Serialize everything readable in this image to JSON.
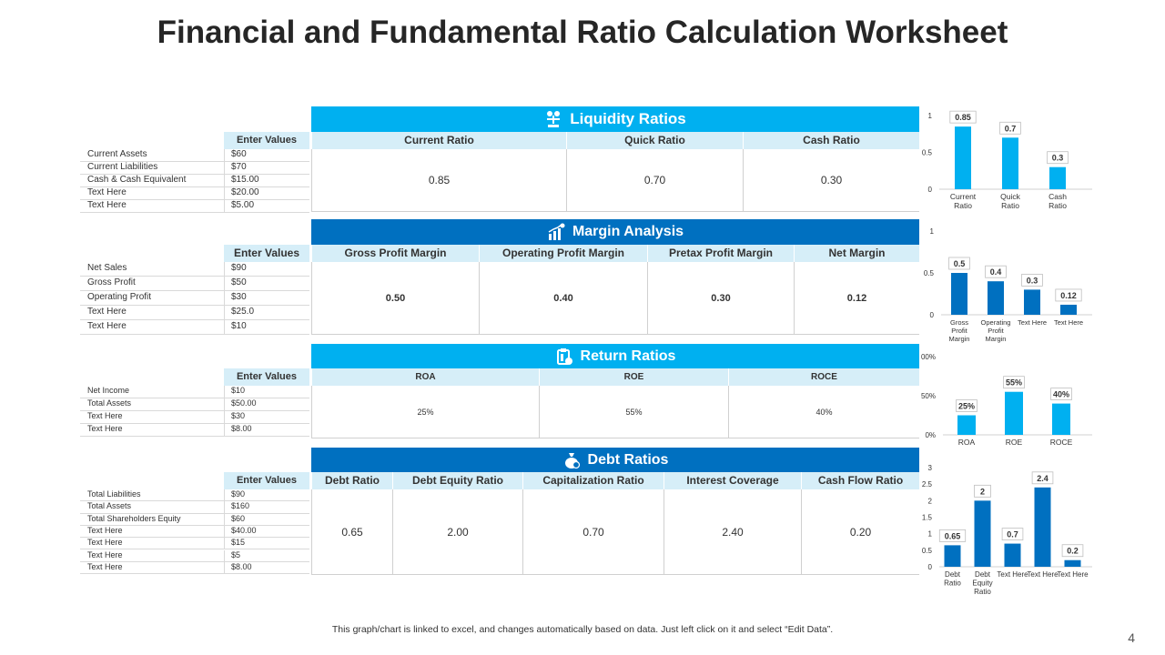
{
  "title": "Financial and Fundamental Ratio Calculation Worksheet",
  "footnote": "This graph/chart is linked to excel, and changes automatically based on data. Just left click on it and select “Edit Data”.",
  "page_number": "4",
  "colors": {
    "light_blue": "#00b0f0",
    "dark_blue": "#0070c0",
    "header_fill": "#d6eef8",
    "label_fill": "#f2f2f2"
  },
  "liquidity": {
    "banner": "Liquidity Ratios",
    "icon": "money-scale-icon",
    "enter_values": "Enter Values",
    "inputs": [
      {
        "label": "Current Assets",
        "value": "$60"
      },
      {
        "label": "Current Liabilities",
        "value": "$70"
      },
      {
        "label": "Cash & Cash Equivalent",
        "value": "$15.00"
      },
      {
        "label": "Text Here",
        "value": "$20.00"
      },
      {
        "label": "Text Here",
        "value": "$5.00"
      }
    ],
    "columns": [
      "Current Ratio",
      "Quick Ratio",
      "Cash Ratio"
    ],
    "results": [
      "0.85",
      "0.70",
      "0.30"
    ]
  },
  "margin": {
    "banner": "Margin Analysis",
    "icon": "bar-growth-icon",
    "enter_values": "Enter Values",
    "inputs": [
      {
        "label": "Net Sales",
        "value": "$90"
      },
      {
        "label": "Gross Profit",
        "value": "$50"
      },
      {
        "label": "Operating Profit",
        "value": "$30"
      },
      {
        "label": "Text Here",
        "value": "$25.0"
      },
      {
        "label": "Text Here",
        "value": "$10"
      }
    ],
    "columns": [
      "Gross Profit Margin",
      "Operating Profit Margin",
      "Pretax Profit Margin",
      "Net Margin"
    ],
    "results": [
      "0.50",
      "0.40",
      "0.30",
      "0.12"
    ]
  },
  "returns": {
    "banner": "Return Ratios",
    "icon": "clipboard-money-icon",
    "enter_values": "Enter Values",
    "inputs": [
      {
        "label": "Net Income",
        "value": "$10"
      },
      {
        "label": "Total Assets",
        "value": "$50.00"
      },
      {
        "label": "Text Here",
        "value": "$30"
      },
      {
        "label": "Text Here",
        "value": "$8.00"
      }
    ],
    "columns": [
      "ROA",
      "ROE",
      "ROCE"
    ],
    "results": [
      "25%",
      "55%",
      "40%"
    ]
  },
  "debt": {
    "banner": "Debt Ratios",
    "icon": "money-bag-icon",
    "enter_values": "Enter Values",
    "inputs": [
      {
        "label": "Total Liabilities",
        "value": "$90"
      },
      {
        "label": "Total Assets",
        "value": "$160"
      },
      {
        "label": "Total Shareholders Equity",
        "value": "$60"
      },
      {
        "label": "Text Here",
        "value": "$40.00"
      },
      {
        "label": "Text Here",
        "value": "$15"
      },
      {
        "label": "Text Here",
        "value": "$5"
      },
      {
        "label": "Text Here",
        "value": "$8.00"
      }
    ],
    "columns": [
      "Debt Ratio",
      "Debt Equity  Ratio",
      "Capitalization Ratio",
      "Interest Coverage",
      "Cash Flow  Ratio"
    ],
    "results": [
      "0.65",
      "2.00",
      "0.70",
      "2.40",
      "0.20"
    ]
  },
  "chart_data": [
    {
      "type": "bar",
      "categories": [
        "Current Ratio",
        "Quick Ratio",
        "Cash Ratio"
      ],
      "values": [
        0.85,
        0.7,
        0.3
      ],
      "data_labels": [
        "0.85",
        "0.7",
        "0.3"
      ],
      "yticks": [
        "0",
        "0.5",
        "1"
      ],
      "ylim": [
        0,
        1
      ],
      "color": "#00b0f0"
    },
    {
      "type": "bar",
      "categories": [
        "Gross Profit Margin",
        "Operating Profit Margin",
        "Text Here",
        "Text Here"
      ],
      "values": [
        0.5,
        0.4,
        0.3,
        0.12
      ],
      "data_labels": [
        "0.5",
        "0.4",
        "0.3",
        "0.12"
      ],
      "yticks": [
        "0",
        "0.5",
        "1"
      ],
      "ylim": [
        0,
        1
      ],
      "color": "#0070c0"
    },
    {
      "type": "bar",
      "categories": [
        "ROA",
        "ROE",
        "ROCE"
      ],
      "values": [
        25,
        55,
        40
      ],
      "data_labels": [
        "25%",
        "55%",
        "40%"
      ],
      "yticks": [
        "0%",
        "50%",
        "100%"
      ],
      "ylim": [
        0,
        100
      ],
      "color": "#00b0f0"
    },
    {
      "type": "bar",
      "categories": [
        "Debt Ratio",
        "Debt Equity Ratio",
        "Text Here",
        "Text Here",
        "Text Here"
      ],
      "values": [
        0.65,
        2,
        0.7,
        2.4,
        0.2
      ],
      "data_labels": [
        "0.65",
        "2",
        "0.7",
        "2.4",
        "0.2"
      ],
      "yticks": [
        "0",
        "0.5",
        "1",
        "1.5",
        "2",
        "2.5",
        "3"
      ],
      "ylim": [
        0,
        3
      ],
      "color": "#0070c0"
    }
  ]
}
